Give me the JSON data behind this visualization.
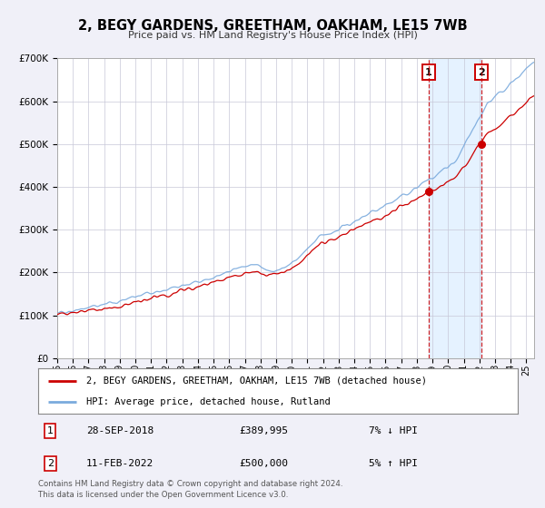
{
  "title": "2, BEGY GARDENS, GREETHAM, OAKHAM, LE15 7WB",
  "subtitle": "Price paid vs. HM Land Registry's House Price Index (HPI)",
  "legend_line1": "2, BEGY GARDENS, GREETHAM, OAKHAM, LE15 7WB (detached house)",
  "legend_line2": "HPI: Average price, detached house, Rutland",
  "marker1_date": "28-SEP-2018",
  "marker1_price": 389995,
  "marker1_label": "£389,995",
  "marker1_hpi_pct": "7% ↓ HPI",
  "marker2_date": "11-FEB-2022",
  "marker2_price": 500000,
  "marker2_label": "£500,000",
  "marker2_hpi_pct": "5% ↑ HPI",
  "footer1": "Contains HM Land Registry data © Crown copyright and database right 2024.",
  "footer2": "This data is licensed under the Open Government Licence v3.0.",
  "red_color": "#cc0000",
  "blue_color": "#7aaadd",
  "background_color": "#f0f0f8",
  "plot_bg_color": "#ffffff",
  "shade_color": "#ddeeff",
  "ylim": [
    0,
    700000
  ],
  "yticks": [
    0,
    100000,
    200000,
    300000,
    400000,
    500000,
    600000,
    700000
  ],
  "xstart": 1995.0,
  "xend": 2025.5,
  "t1": 2018.747,
  "t2": 2022.115
}
